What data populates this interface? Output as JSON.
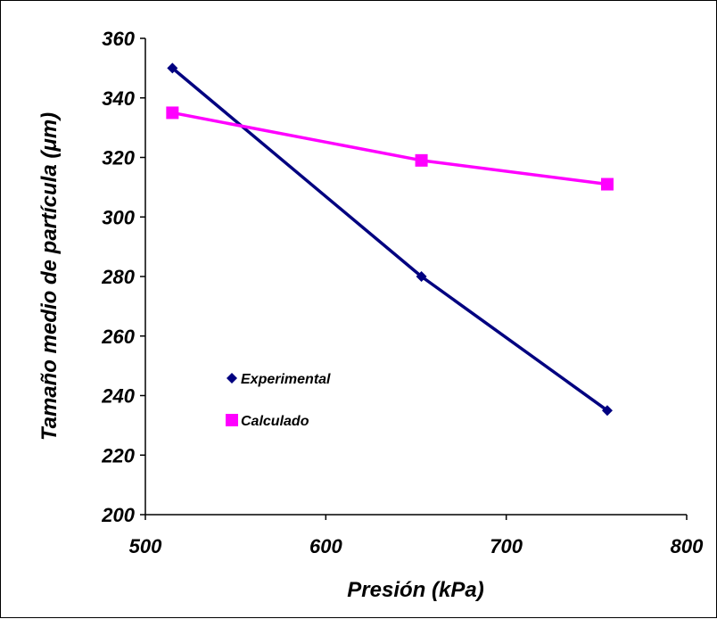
{
  "chart_data": {
    "type": "line",
    "title": "",
    "xlabel": "Presión (kPa)",
    "ylabel": "Tamaño medio de partícula (μm)",
    "xlim": [
      500,
      800
    ],
    "ylim": [
      200,
      360
    ],
    "xticks": [
      500,
      600,
      700,
      800
    ],
    "yticks": [
      200,
      220,
      240,
      260,
      280,
      300,
      320,
      340,
      360
    ],
    "grid": false,
    "legend_position": "left",
    "series": [
      {
        "name": "Experimental",
        "color": "#000080",
        "marker": "diamond",
        "x": [
          515,
          653,
          756
        ],
        "y": [
          350,
          280,
          235
        ]
      },
      {
        "name": "Calculado",
        "color": "#FF00FF",
        "marker": "square",
        "x": [
          515,
          653,
          756
        ],
        "y": [
          335,
          319,
          311
        ]
      }
    ]
  }
}
